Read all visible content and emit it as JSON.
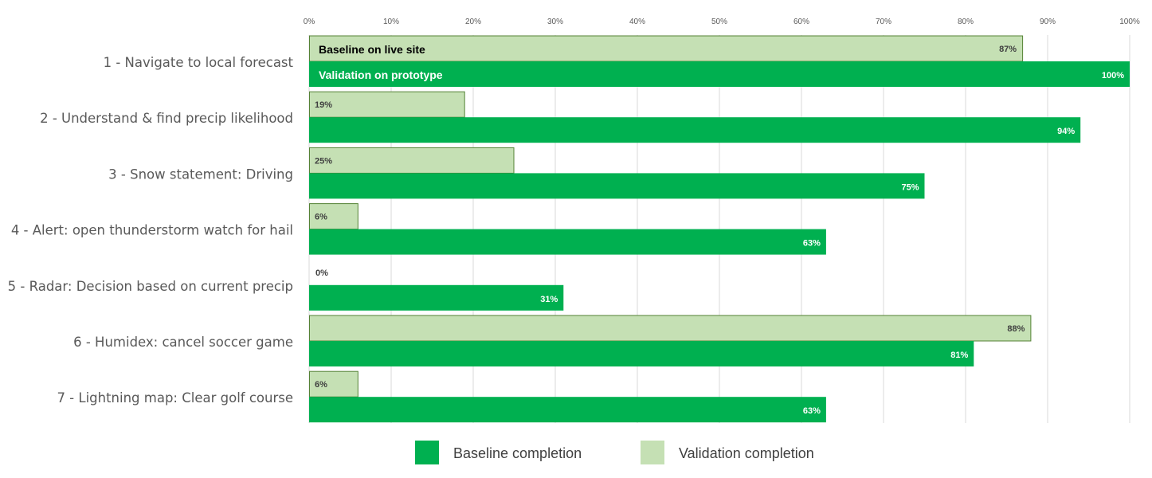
{
  "chart_data": {
    "type": "bar",
    "orientation": "horizontal",
    "categories": [
      "1 - Navigate to local forecast",
      "2 - Understand & find precip likelihood",
      "3 - Snow statement: Driving",
      "4 - Alert: open thunderstorm watch for hail",
      "5 - Radar: Decision based on current precip",
      "6 - Humidex: cancel soccer game",
      "7 - Lightning map: Clear golf course"
    ],
    "series": [
      {
        "name": "Validation completion",
        "color": "#c5e0b4",
        "stroke": "#548235",
        "values": [
          87,
          19,
          25,
          6,
          0,
          88,
          6
        ],
        "labels": [
          "87%",
          "19%",
          "25%",
          "6%",
          "0%",
          "88%",
          "6%"
        ]
      },
      {
        "name": "Baseline completion",
        "color": "#00b050",
        "values": [
          100,
          94,
          75,
          63,
          31,
          81,
          63
        ],
        "labels": [
          "100%",
          "94%",
          "75%",
          "63%",
          "31%",
          "81%",
          "63%"
        ]
      }
    ],
    "xlim": [
      0,
      100
    ],
    "x_ticks": [
      0,
      10,
      20,
      30,
      40,
      50,
      60,
      70,
      80,
      90,
      100
    ],
    "x_tick_labels": [
      "0%",
      "10%",
      "20%",
      "30%",
      "40%",
      "50%",
      "60%",
      "70%",
      "80%",
      "90%",
      "100%"
    ],
    "x_axis_position": "top",
    "grid": true,
    "legend_position": "bottom",
    "bar_annotations": [
      "Baseline on live site",
      "Validation on prototype"
    ]
  }
}
